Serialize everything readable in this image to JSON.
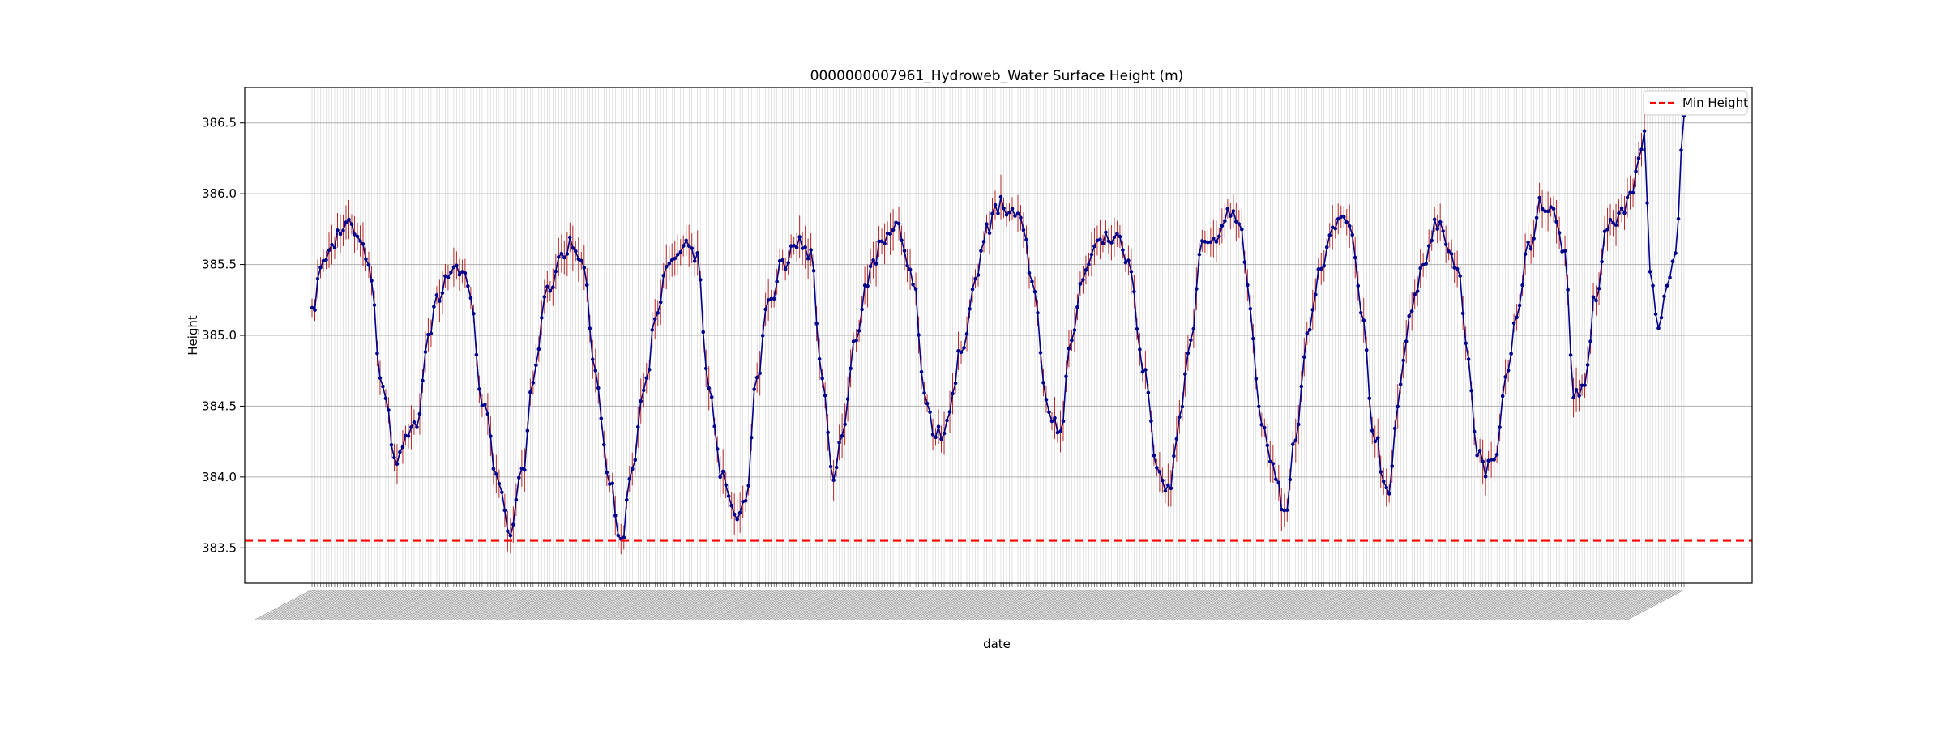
{
  "chart_data": {
    "type": "line",
    "title": "0000000007961_Hydroweb_Water Surface Height (m)",
    "xlabel": "date",
    "ylabel": "Height",
    "ylim": [
      383.25,
      386.75
    ],
    "yticks": [
      "383.5",
      "384.0",
      "384.5",
      "385.0",
      "385.5",
      "386.0",
      "386.5"
    ],
    "grid": true,
    "legend_position": "top-right",
    "min_height": 383.55,
    "min_height_label": "Min Height",
    "colors": {
      "line": "#00008b",
      "marker": "#00008b",
      "errorbar": "#b22222",
      "min_line": "#ff0000",
      "grid": "#b0b0b0"
    },
    "n_points": 330,
    "cycle_keypoints": [
      [
        0,
        385.15
      ],
      [
        4,
        385.55
      ],
      [
        12,
        385.78
      ],
      [
        16,
        385.75
      ],
      [
        20,
        385.5
      ],
      [
        25,
        384.6
      ],
      [
        30,
        384.12
      ],
      [
        33,
        384.3
      ],
      [
        37,
        384.4
      ],
      [
        41,
        385.0
      ],
      [
        45,
        385.3
      ],
      [
        50,
        385.5
      ],
      [
        55,
        385.4
      ],
      [
        60,
        384.55
      ],
      [
        66,
        383.95
      ],
      [
        70,
        383.62
      ],
      [
        74,
        384.0
      ],
      [
        78,
        384.7
      ],
      [
        83,
        385.3
      ],
      [
        88,
        385.55
      ],
      [
        92,
        385.67
      ],
      [
        96,
        385.5
      ],
      [
        100,
        384.7
      ],
      [
        105,
        384.0
      ],
      [
        109,
        383.55
      ],
      [
        113,
        384.1
      ],
      [
        117,
        384.6
      ],
      [
        122,
        385.2
      ],
      [
        126,
        385.55
      ],
      [
        131,
        385.65
      ],
      [
        136,
        385.55
      ],
      [
        140,
        384.6
      ],
      [
        145,
        384.0
      ],
      [
        149,
        383.72
      ],
      [
        153,
        383.85
      ],
      [
        157,
        384.7
      ],
      [
        161,
        385.2
      ],
      [
        166,
        385.5
      ],
      [
        171,
        385.65
      ],
      [
        176,
        385.55
      ],
      [
        180,
        384.7
      ],
      [
        184,
        384.0
      ],
      [
        187,
        384.3
      ],
      [
        192,
        385.0
      ],
      [
        197,
        385.45
      ],
      [
        202,
        385.7
      ],
      [
        207,
        385.75
      ],
      [
        212,
        385.4
      ],
      [
        216,
        384.6
      ],
      [
        220,
        384.3
      ],
      [
        224,
        384.35
      ],
      [
        229,
        384.9
      ],
      [
        234,
        385.35
      ],
      [
        238,
        385.75
      ],
      [
        243,
        385.92
      ],
      [
        250,
        385.8
      ],
      [
        255,
        385.3
      ],
      [
        259,
        384.5
      ],
      [
        264,
        384.3
      ],
      [
        268,
        385.0
      ],
      [
        273,
        385.5
      ],
      [
        278,
        385.65
      ],
      [
        283,
        385.7
      ],
      [
        288,
        385.55
      ],
      [
        293,
        384.8
      ],
      [
        298,
        384.1
      ],
      [
        302,
        383.9
      ],
      [
        306,
        384.4
      ],
      [
        310,
        385.0
      ]
    ],
    "tail_keypoints": [
      [
        310,
        385.0
      ],
      [
        314,
        385.7
      ],
      [
        319,
        385.72
      ],
      [
        324,
        385.85
      ],
      [
        328,
        385.78
      ],
      [
        330,
        385.3
      ],
      [
        335,
        384.4
      ],
      [
        340,
        384.0
      ],
      [
        343,
        383.72
      ],
      [
        347,
        384.3
      ],
      [
        351,
        385.0
      ],
      [
        356,
        385.5
      ],
      [
        361,
        385.8
      ],
      [
        364,
        385.78
      ],
      [
        367,
        385.7
      ],
      [
        370,
        385.2
      ],
      [
        375,
        384.3
      ],
      [
        378,
        384.0
      ],
      [
        380,
        383.85
      ],
      [
        383,
        384.55
      ],
      [
        388,
        385.2
      ],
      [
        392,
        385.5
      ],
      [
        397,
        385.8
      ],
      [
        401,
        385.6
      ],
      [
        404,
        385.5
      ],
      [
        407,
        385.0
      ],
      [
        411,
        384.2
      ],
      [
        414,
        384.05
      ],
      [
        418,
        384.2
      ],
      [
        421,
        384.7
      ],
      [
        425,
        385.1
      ],
      [
        429,
        385.6
      ],
      [
        434,
        385.95
      ],
      [
        438,
        385.85
      ],
      [
        442,
        385.6
      ],
      [
        445,
        384.55
      ],
      [
        449,
        384.7
      ],
      [
        453,
        385.3
      ],
      [
        457,
        385.8
      ],
      [
        462,
        385.85
      ],
      [
        466,
        386.05
      ],
      [
        470,
        386.42
      ],
      [
        472,
        385.45
      ],
      [
        475,
        385.05
      ],
      [
        478,
        385.35
      ],
      [
        481,
        385.58
      ],
      [
        484,
        386.55
      ]
    ]
  }
}
